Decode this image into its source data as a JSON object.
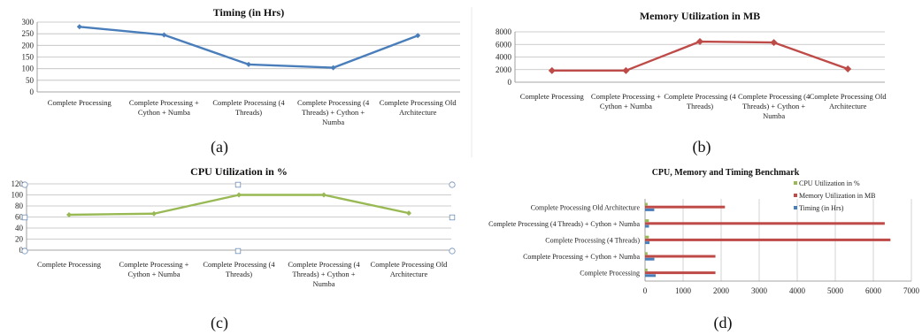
{
  "chart_data": [
    {
      "type": "line",
      "title": "Timing (in Hrs)",
      "caption": "(a)",
      "categories": [
        [
          "Complete Processing"
        ],
        [
          "Complete Processing +",
          "Cython + Numba"
        ],
        [
          "Complete Processing (4",
          "Threads)"
        ],
        [
          "Complete Processing (4",
          "Threads) + Cython +",
          "Numba"
        ],
        [
          "Complete Processing Old",
          "Architecture"
        ]
      ],
      "values": [
        280,
        245,
        118,
        104,
        242
      ],
      "ylim": [
        0,
        300
      ],
      "yticks": [
        0,
        50,
        100,
        150,
        200,
        250,
        300
      ],
      "color": "#4a7ebb",
      "grid": true
    },
    {
      "type": "line",
      "title": "Memory Utilization in MB",
      "caption": "(b)",
      "categories": [
        [
          "Complete Processing"
        ],
        [
          "Complete Processing +",
          "Cython + Numba"
        ],
        [
          "Complete Processing (4",
          "Threads)"
        ],
        [
          "Complete Processing (4",
          "Threads) + Cython +",
          "Numba"
        ],
        [
          "Complete Processing Old",
          "Architecture"
        ]
      ],
      "values": [
        1850,
        1850,
        6450,
        6300,
        2100
      ],
      "ylim": [
        0,
        8000
      ],
      "yticks": [
        0,
        2000,
        4000,
        6000,
        8000
      ],
      "color": "#be4b48",
      "grid": true
    },
    {
      "type": "line",
      "title": "CPU Utilization in %",
      "caption": "(c)",
      "categories": [
        [
          "Complete Processing"
        ],
        [
          "Complete Processing +",
          "Cython + Numba"
        ],
        [
          "Complete Processing (4",
          "Threads)"
        ],
        [
          "Complete Processing (4",
          "Threads) + Cython +",
          "Numba"
        ],
        [
          "Complete Processing Old",
          "Architecture"
        ]
      ],
      "values": [
        64,
        66,
        100,
        100,
        67
      ],
      "ylim": [
        0,
        120
      ],
      "yticks": [
        0,
        20,
        40,
        60,
        80,
        100,
        120
      ],
      "color": "#98b954",
      "grid": true
    },
    {
      "type": "bar",
      "orientation": "horizontal",
      "title": "CPU, Memory and Timing Benchmark",
      "caption": "(d)",
      "categories": [
        "Complete Processing",
        "Complete Processing + Cython + Numba",
        "Complete Processing (4 Threads)",
        "Complete Processing (4 Threads) + Cython + Numba",
        "Complete Processing Old Architecture"
      ],
      "series": [
        {
          "name": "Timing (in Hrs)",
          "values": [
            280,
            245,
            118,
            104,
            242
          ],
          "color": "#4a7ebb"
        },
        {
          "name": "Memory Utilization in MB",
          "values": [
            1850,
            1850,
            6450,
            6300,
            2100
          ],
          "color": "#be4b48"
        },
        {
          "name": "CPU Utilization in %",
          "values": [
            64,
            66,
            100,
            100,
            67
          ],
          "color": "#98b954"
        }
      ],
      "legend_order": [
        "CPU Utilization in %",
        "Memory Utilization in MB",
        "Timing (in Hrs)"
      ],
      "xlim": [
        0,
        7000
      ],
      "xticks": [
        0,
        1000,
        2000,
        3000,
        4000,
        5000,
        6000,
        7000
      ],
      "legend": "right",
      "grid": true
    }
  ]
}
